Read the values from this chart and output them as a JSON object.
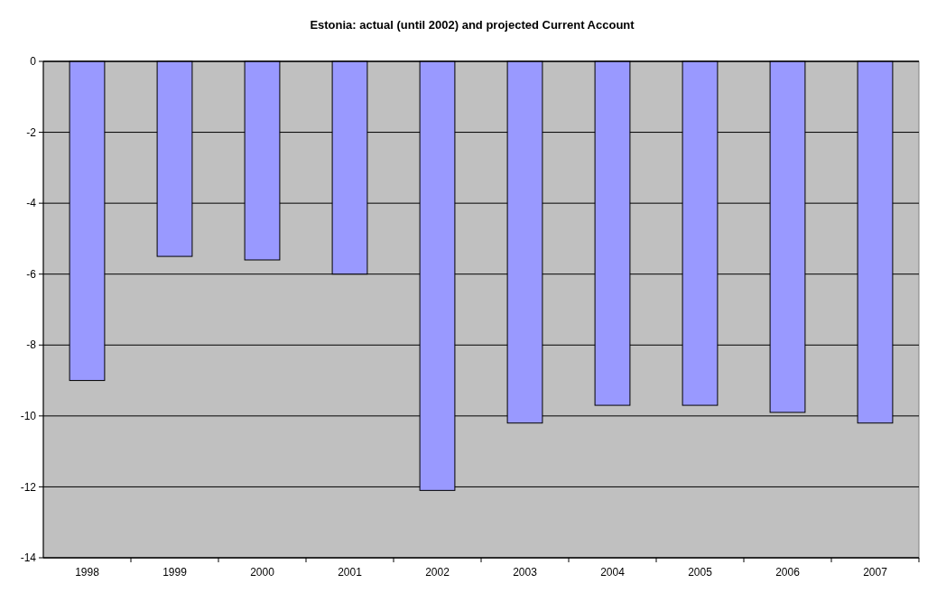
{
  "chart_data": {
    "type": "bar",
    "title": "Estonia: actual (until 2002) and projected Current  Account",
    "categories": [
      "1998",
      "1999",
      "2000",
      "2001",
      "2002",
      "2003",
      "2004",
      "2005",
      "2006",
      "2007"
    ],
    "values": [
      -9.0,
      -5.5,
      -5.6,
      -6.0,
      -12.1,
      -10.2,
      -9.7,
      -9.7,
      -9.9,
      -10.2
    ],
    "color": "#9999ff",
    "ylim": [
      -14,
      0
    ],
    "yticks": [
      -14,
      -12,
      -10,
      -8,
      -6,
      -4,
      -2,
      0
    ],
    "grid": "y"
  }
}
